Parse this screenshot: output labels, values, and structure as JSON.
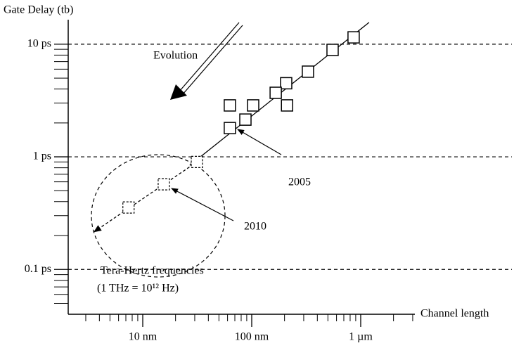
{
  "chart_data": {
    "type": "scatter",
    "y_label": "Gate Delay (tb)",
    "x_label": "Channel length",
    "xlog": true,
    "ylog": true,
    "grid": true,
    "xlim": [
      2.07,
      3140
    ],
    "ylim": [
      0.04,
      16.5
    ],
    "xticks": [
      {
        "value": 10,
        "label": "10 nm"
      },
      {
        "value": 100,
        "label": "100 nm"
      },
      {
        "value": 1000,
        "label": "1 µm"
      }
    ],
    "yticks": [
      {
        "value": 10,
        "label": "10 ps"
      },
      {
        "value": 1,
        "label": "1 ps"
      },
      {
        "value": 0.1,
        "label": "0.1 ps"
      }
    ],
    "xminor_ticks": [
      3,
      4,
      5,
      6,
      7,
      8,
      9,
      20,
      30,
      40,
      50,
      60,
      70,
      80,
      90,
      200,
      300,
      400,
      500,
      600,
      700,
      800,
      900,
      2000,
      3000
    ],
    "yminor_ticks": [
      0.05,
      0.06,
      0.07,
      0.08,
      0.09,
      0.2,
      0.3,
      0.4,
      0.5,
      0.6,
      0.7,
      0.8,
      0.9,
      2,
      3,
      4,
      5,
      6,
      7,
      8,
      9
    ],
    "points": {
      "x": [
        861,
        552,
        328,
        207,
        166,
        211,
        103,
        63,
        87.5,
        63,
        31.4,
        15.6,
        7.4
      ],
      "y": [
        11.5,
        8.9,
        5.7,
        4.5,
        3.7,
        2.86,
        2.86,
        2.86,
        2.14,
        1.8,
        0.9,
        0.57,
        0.355
      ],
      "dashed": [
        false,
        false,
        false,
        false,
        false,
        false,
        false,
        false,
        false,
        false,
        true,
        true,
        true
      ]
    },
    "lines": [
      {
        "x": [
          27,
          1194
        ],
        "y": [
          0.84,
          15.6
        ],
        "dashed": false
      },
      {
        "x": [
          3.53,
          31.4
        ],
        "y": [
          0.214,
          0.9
        ],
        "dashed": true
      }
    ],
    "annotations": [
      "Evolution",
      "2005",
      "2010",
      "Tera-Hertz frequencies",
      "(1 THz = 10¹² Hz)"
    ]
  }
}
